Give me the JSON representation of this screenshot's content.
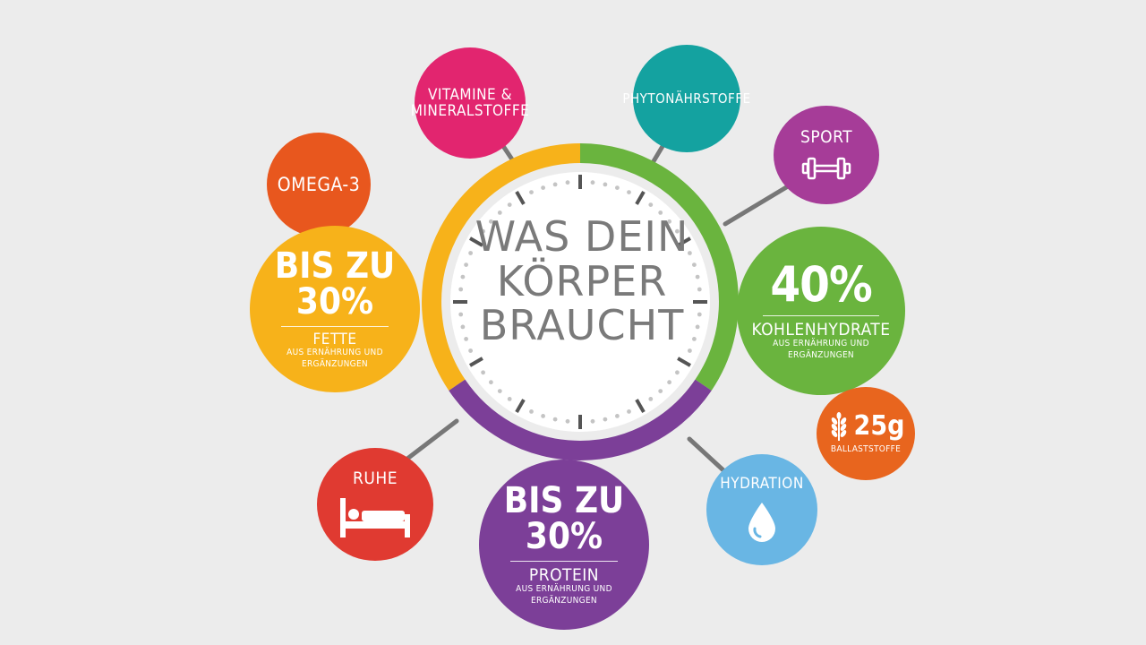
{
  "center": {
    "line1": "WAS DEIN",
    "line2": "KÖRPER",
    "line3": "BRAUCHT"
  },
  "ring_colors": {
    "fats": "#f7b21a",
    "carbs": "#6ab43e",
    "protein": "#7c3f98"
  },
  "bubbles": {
    "vitamine": {
      "line1": "VITAMINE &",
      "line2": "MINERALSTOFFE",
      "color": "#e2256f"
    },
    "phyto": {
      "label": "PHYTONÄHRSTOFFE",
      "color": "#14a2a0"
    },
    "sport": {
      "label": "SPORT",
      "icon": "dumbbell-icon",
      "color": "#a63c98"
    },
    "omega": {
      "label": "OMEGA-3",
      "color": "#e8571e"
    },
    "fette": {
      "amount": "BIS ZU 30%",
      "label": "FETTE",
      "sub1": "AUS ERNÄHRUNG UND",
      "sub2": "ERGÄNZUNGEN",
      "color": "#f7b21a"
    },
    "kohlen": {
      "amount": "40%",
      "label": "KOHLENHYDRATE",
      "sub1": "AUS ERNÄHRUNG UND",
      "sub2": "ERGÄNZUNGEN",
      "color": "#6ab43e"
    },
    "ballast": {
      "amount": "25g",
      "label": "BALLASTSTOFFE",
      "icon": "wheat-icon",
      "color": "#e8651e"
    },
    "ruhe": {
      "label": "RUHE",
      "icon": "bed-icon",
      "color": "#e03a31"
    },
    "protein": {
      "amount": "BIS ZU 30%",
      "label": "PROTEIN",
      "sub1": "AUS ERNÄHRUNG UND",
      "sub2": "ERGÄNZUNGEN",
      "color": "#7c3f98"
    },
    "hydration": {
      "label": "HYDRATION",
      "icon": "water-drop-icon",
      "color": "#69b6e4"
    }
  }
}
